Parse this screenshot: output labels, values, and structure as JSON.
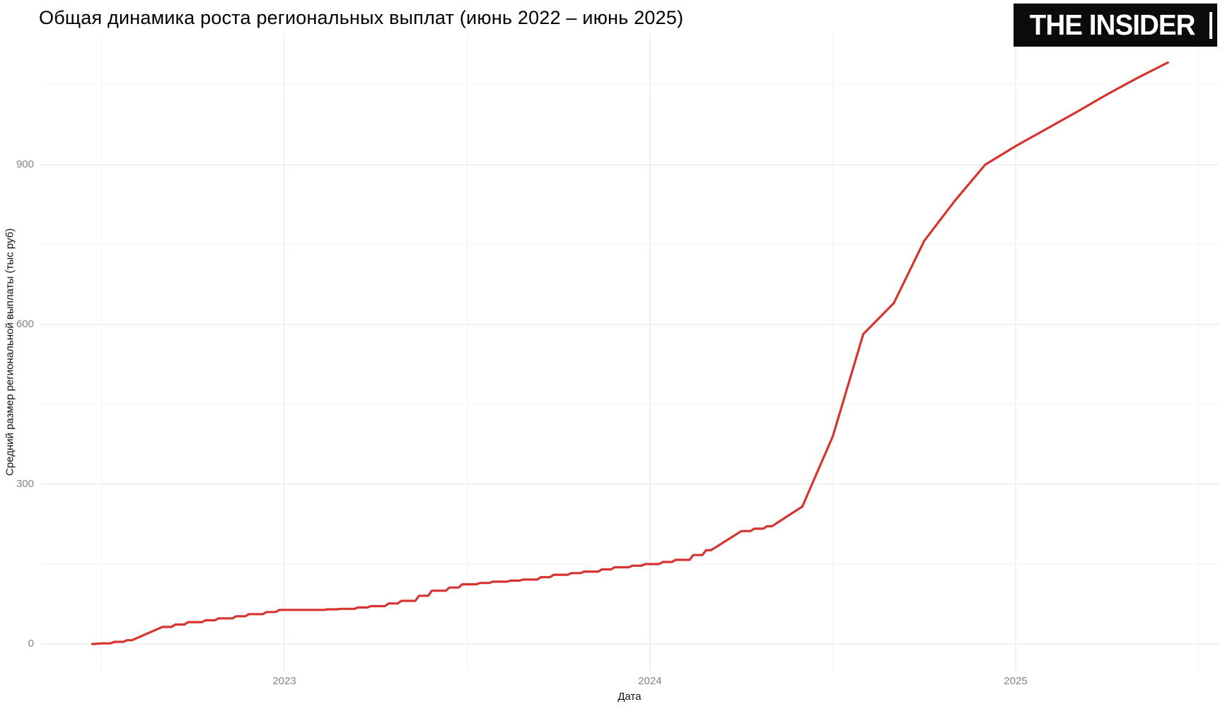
{
  "header": {
    "title": "Общая динамика роста региональных выплат (июнь 2022 – июнь 2025)",
    "logo_text": "THE INSIDER"
  },
  "chart_data": {
    "type": "line",
    "title": "Общая динамика роста региональных выплат (июнь 2022 – июнь 2025)",
    "xlabel": "Дата",
    "ylabel": "Средний размер региональной выплаты (тыс руб)",
    "legend": "none",
    "grid": "major+minor",
    "x_range": [
      "2022-06",
      "2025-06"
    ],
    "ylim": [
      0,
      1150
    ],
    "y_ticks": [
      0,
      300,
      600,
      900
    ],
    "y_minor_ticks": [
      150,
      450,
      750,
      1050
    ],
    "x_ticks": [
      {
        "label": "2023",
        "date": "2023-01-01"
      },
      {
        "label": "2024",
        "date": "2024-01-01"
      },
      {
        "label": "2025",
        "date": "2025-01-01"
      }
    ],
    "x_minor_dates": [
      "2022-07-01",
      "2023-07-01",
      "2024-07-01",
      "2025-07-01"
    ],
    "series": [
      {
        "name": "Средний размер региональной выплаты (тыс руб)",
        "color": "#d7342f",
        "points": [
          {
            "date": "2022-06-22",
            "value": 0
          },
          {
            "date": "2022-07-01",
            "value": 1
          },
          {
            "date": "2022-08-01",
            "value": 7
          },
          {
            "date": "2022-09-01",
            "value": 32
          },
          {
            "date": "2022-10-01",
            "value": 41
          },
          {
            "date": "2022-11-01",
            "value": 48
          },
          {
            "date": "2022-12-01",
            "value": 56
          },
          {
            "date": "2023-01-01",
            "value": 64
          },
          {
            "date": "2023-02-01",
            "value": 64
          },
          {
            "date": "2023-03-01",
            "value": 66
          },
          {
            "date": "2023-04-01",
            "value": 71
          },
          {
            "date": "2023-05-01",
            "value": 81
          },
          {
            "date": "2023-06-01",
            "value": 100
          },
          {
            "date": "2023-07-01",
            "value": 112
          },
          {
            "date": "2023-08-01",
            "value": 117
          },
          {
            "date": "2023-09-01",
            "value": 121
          },
          {
            "date": "2023-10-01",
            "value": 130
          },
          {
            "date": "2023-11-01",
            "value": 136
          },
          {
            "date": "2023-12-01",
            "value": 144
          },
          {
            "date": "2024-01-01",
            "value": 150
          },
          {
            "date": "2024-02-01",
            "value": 158
          },
          {
            "date": "2024-03-01",
            "value": 176
          },
          {
            "date": "2024-04-01",
            "value": 212
          },
          {
            "date": "2024-05-01",
            "value": 221
          },
          {
            "date": "2024-06-01",
            "value": 258
          },
          {
            "date": "2024-07-01",
            "value": 390
          },
          {
            "date": "2024-08-01",
            "value": 582
          },
          {
            "date": "2024-09-01",
            "value": 640
          },
          {
            "date": "2024-10-01",
            "value": 757
          },
          {
            "date": "2024-11-01",
            "value": 832
          },
          {
            "date": "2024-12-01",
            "value": 900
          },
          {
            "date": "2025-01-01",
            "value": 935
          },
          {
            "date": "2025-02-01",
            "value": 967
          },
          {
            "date": "2025-03-01",
            "value": 999
          },
          {
            "date": "2025-04-01",
            "value": 1032
          },
          {
            "date": "2025-05-01",
            "value": 1063
          },
          {
            "date": "2025-06-01",
            "value": 1092
          }
        ]
      }
    ],
    "colors": {
      "line": "#d7342f",
      "grid_major": "#e4e4e4",
      "grid_minor": "#f3f3f3",
      "tick_label": "#838383",
      "axis_title": "#111111",
      "title_text": "#000000",
      "logo_bg": "#0b0b0b",
      "logo_text": "#ffffff",
      "background": "#ffffff"
    }
  }
}
